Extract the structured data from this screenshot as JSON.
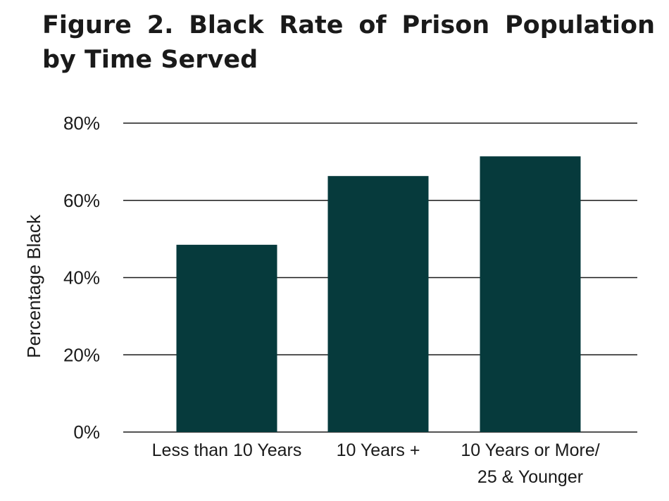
{
  "figure": {
    "title": "Figure 2. Black Rate of Prison Population by Time Served"
  },
  "chart_data": {
    "type": "bar",
    "title": "Figure 2. Black Rate of Prison Population by Time Served",
    "categories": [
      [
        "Less than 10 Years"
      ],
      [
        "10 Years +"
      ],
      [
        "10 Years or More/",
        "25 & Younger"
      ]
    ],
    "values": [
      48.5,
      66.3,
      71.4
    ],
    "xlabel": "",
    "ylabel": "Percentage Black",
    "ylim": [
      0,
      80
    ],
    "yticks": [
      0,
      20,
      40,
      60,
      80
    ],
    "ytick_labels": [
      "0%",
      "20%",
      "40%",
      "60%",
      "80%"
    ],
    "grid": true,
    "legend": "none",
    "colors": {
      "bar": "#063a3c",
      "grid": "#1a1a1a"
    }
  }
}
